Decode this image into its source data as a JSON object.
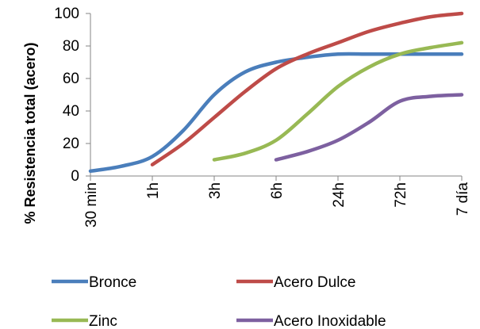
{
  "chart_data": {
    "type": "line",
    "title": "",
    "xlabel": "",
    "ylabel": "% Resistencia total (acero)",
    "categories": [
      "30 min",
      "1h",
      "3h",
      "6h",
      "24h",
      "72h",
      "7 día"
    ],
    "ylim": [
      0,
      100
    ],
    "yticks": [
      0,
      20,
      40,
      60,
      80,
      100
    ],
    "grid": false,
    "legend_position": "bottom",
    "series": [
      {
        "name": "Bronce",
        "color": "#4A7EBB",
        "x": [
          0,
          0.5,
          1,
          1.5,
          2,
          2.5,
          3,
          3.5,
          4,
          4.5,
          5,
          5.5,
          6
        ],
        "values": [
          3,
          6,
          12,
          28,
          50,
          64,
          70,
          73,
          75,
          75,
          75,
          75,
          75
        ]
      },
      {
        "name": "Acero Dulce",
        "color": "#BE4B48",
        "x": [
          1,
          1.5,
          2,
          2.5,
          3,
          3.5,
          4,
          4.5,
          5,
          5.5,
          6
        ],
        "values": [
          7,
          20,
          36,
          52,
          66,
          75,
          82,
          89,
          94,
          98,
          100
        ]
      },
      {
        "name": "Zinc",
        "color": "#98B954",
        "x": [
          2,
          2.5,
          3,
          3.5,
          4,
          4.5,
          5,
          5.5,
          6
        ],
        "values": [
          10,
          14,
          22,
          38,
          55,
          67,
          75,
          79,
          82
        ]
      },
      {
        "name": "Acero Inoxidable",
        "color": "#7D60A0",
        "x": [
          3,
          3.5,
          4,
          4.5,
          5,
          5.5,
          6
        ],
        "values": [
          10,
          15,
          22,
          33,
          46,
          49,
          50
        ]
      }
    ]
  }
}
